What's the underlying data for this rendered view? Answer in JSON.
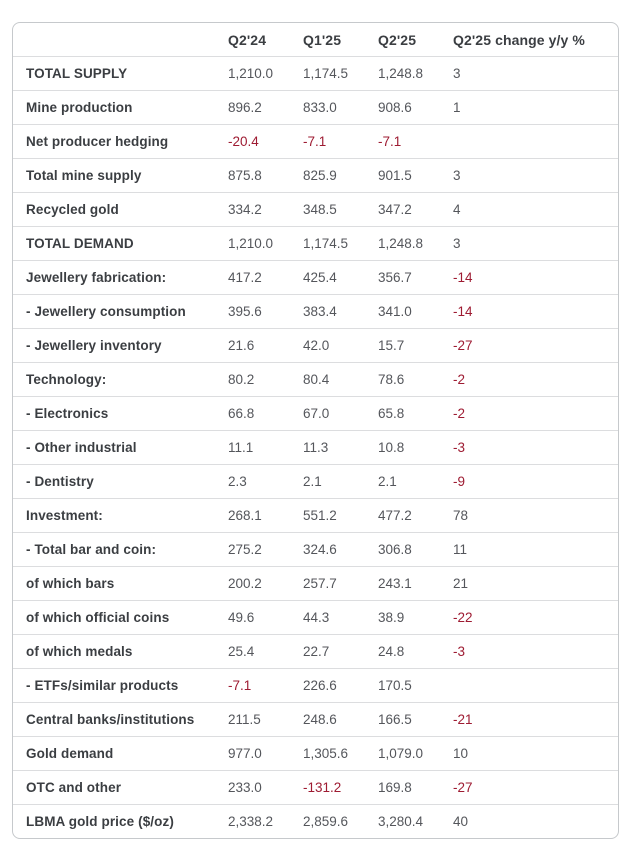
{
  "chart_data": {
    "type": "table",
    "columns": [
      "",
      "Q2'24",
      "Q1'25",
      "Q2'25",
      "Q2'25 change y/y %"
    ],
    "rows": [
      {
        "label": "TOTAL SUPPLY",
        "q224": "1,210.0",
        "q125": "1,174.5",
        "q225": "1,248.8",
        "change": "3"
      },
      {
        "label": "Mine production",
        "q224": "896.2",
        "q125": "833.0",
        "q225": "908.6",
        "change": "1"
      },
      {
        "label": "Net producer hedging",
        "q224": "-20.4",
        "q125": "-7.1",
        "q225": "-7.1",
        "change": ""
      },
      {
        "label": "Total mine supply",
        "q224": "875.8",
        "q125": "825.9",
        "q225": "901.5",
        "change": "3"
      },
      {
        "label": "Recycled gold",
        "q224": "334.2",
        "q125": "348.5",
        "q225": "347.2",
        "change": "4"
      },
      {
        "label": "TOTAL DEMAND",
        "q224": "1,210.0",
        "q125": "1,174.5",
        "q225": "1,248.8",
        "change": "3"
      },
      {
        "label": "Jewellery fabrication:",
        "q224": "417.2",
        "q125": "425.4",
        "q225": "356.7",
        "change": "-14"
      },
      {
        "label": "- Jewellery consumption",
        "q224": "395.6",
        "q125": "383.4",
        "q225": "341.0",
        "change": "-14"
      },
      {
        "label": "- Jewellery inventory",
        "q224": "21.6",
        "q125": "42.0",
        "q225": "15.7",
        "change": "-27"
      },
      {
        "label": "Technology:",
        "q224": "80.2",
        "q125": "80.4",
        "q225": "78.6",
        "change": "-2"
      },
      {
        "label": "- Electronics",
        "q224": "66.8",
        "q125": "67.0",
        "q225": "65.8",
        "change": "-2"
      },
      {
        "label": "- Other industrial",
        "q224": "11.1",
        "q125": "11.3",
        "q225": "10.8",
        "change": "-3"
      },
      {
        "label": "- Dentistry",
        "q224": "2.3",
        "q125": "2.1",
        "q225": "2.1",
        "change": "-9"
      },
      {
        "label": "Investment:",
        "q224": "268.1",
        "q125": "551.2",
        "q225": "477.2",
        "change": "78"
      },
      {
        "label": "- Total bar and coin:",
        "q224": "275.2",
        "q125": "324.6",
        "q225": "306.8",
        "change": "11"
      },
      {
        "label": "of which bars",
        "q224": "200.2",
        "q125": "257.7",
        "q225": "243.1",
        "change": "21"
      },
      {
        "label": "of which official coins",
        "q224": "49.6",
        "q125": "44.3",
        "q225": "38.9",
        "change": "-22"
      },
      {
        "label": "of which medals",
        "q224": "25.4",
        "q125": "22.7",
        "q225": "24.8",
        "change": "-3"
      },
      {
        "label": "- ETFs/similar products",
        "q224": "-7.1",
        "q125": "226.6",
        "q225": "170.5",
        "change": ""
      },
      {
        "label": "Central banks/institutions",
        "q224": "211.5",
        "q125": "248.6",
        "q225": "166.5",
        "change": "-21"
      },
      {
        "label": "Gold demand",
        "q224": "977.0",
        "q125": "1,305.6",
        "q225": "1,079.0",
        "change": "10"
      },
      {
        "label": "OTC and other",
        "q224": "233.0",
        "q125": "-131.2",
        "q225": "169.8",
        "change": "-27"
      },
      {
        "label": "LBMA gold price ($/oz)",
        "q224": "2,338.2",
        "q125": "2,859.6",
        "q225": "3,280.4",
        "change": "40"
      }
    ]
  },
  "colors": {
    "negative_value": "#9e1b32",
    "value_text": "#54565b",
    "label_text": "#3b3e42",
    "outer_border": "#c6c9cc",
    "row_divider": "#dcdddf",
    "background": "#ffffff"
  }
}
